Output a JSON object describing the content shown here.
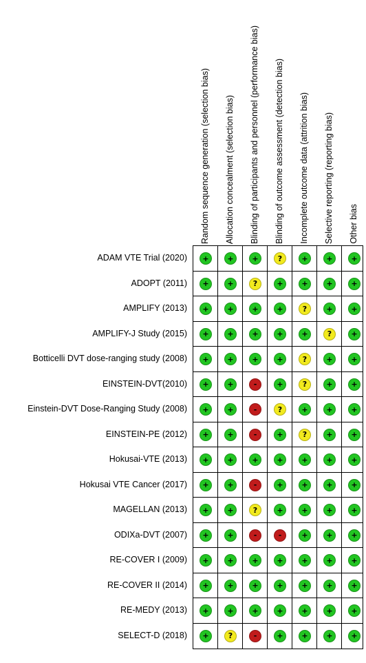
{
  "domains": [
    "Random sequence generation (selection bias)",
    "Allocation concealment (selection bias)",
    "Blinding of participants and personnel (performance bias)",
    "Blinding of outcome assessment (detection bias)",
    "Incomplete outcome data (attrition bias)",
    "Selective reporting (reporting bias)",
    "Other bias"
  ],
  "judgement_symbols": {
    "low": "+",
    "unclear": "?",
    "high": "-"
  },
  "judgement_colors": {
    "low": "#22c522",
    "unclear": "#f2ea1e",
    "high": "#c11c1c"
  },
  "studies": [
    {
      "name": "ADAM VTE Trial (2020)",
      "ratings": [
        "low",
        "low",
        "low",
        "unclear",
        "low",
        "low",
        "low"
      ]
    },
    {
      "name": "ADOPT (2011)",
      "ratings": [
        "low",
        "low",
        "unclear",
        "low",
        "low",
        "low",
        "low"
      ]
    },
    {
      "name": "AMPLIFY (2013)",
      "ratings": [
        "low",
        "low",
        "low",
        "low",
        "unclear",
        "low",
        "low"
      ]
    },
    {
      "name": "AMPLIFY-J Study (2015)",
      "ratings": [
        "low",
        "low",
        "low",
        "low",
        "low",
        "unclear",
        "low"
      ]
    },
    {
      "name": "Botticelli DVT dose-ranging study (2008)",
      "ratings": [
        "low",
        "low",
        "low",
        "low",
        "unclear",
        "low",
        "low"
      ]
    },
    {
      "name": "EINSTEIN-DVT(2010)",
      "ratings": [
        "low",
        "low",
        "high",
        "low",
        "unclear",
        "low",
        "low"
      ]
    },
    {
      "name": "Einstein-DVT Dose-Ranging Study (2008)",
      "ratings": [
        "low",
        "low",
        "high",
        "unclear",
        "low",
        "low",
        "low"
      ]
    },
    {
      "name": "EINSTEIN-PE (2012)",
      "ratings": [
        "low",
        "low",
        "high",
        "low",
        "unclear",
        "low",
        "low"
      ]
    },
    {
      "name": "Hokusai-VTE (2013)",
      "ratings": [
        "low",
        "low",
        "low",
        "low",
        "low",
        "low",
        "low"
      ]
    },
    {
      "name": "Hokusai VTE Cancer (2017)",
      "ratings": [
        "low",
        "low",
        "high",
        "low",
        "low",
        "low",
        "low"
      ]
    },
    {
      "name": "MAGELLAN (2013)",
      "ratings": [
        "low",
        "low",
        "unclear",
        "low",
        "low",
        "low",
        "low"
      ]
    },
    {
      "name": "ODIXa-DVT (2007)",
      "ratings": [
        "low",
        "low",
        "high",
        "high",
        "low",
        "low",
        "low"
      ]
    },
    {
      "name": "RE-COVER I (2009)",
      "ratings": [
        "low",
        "low",
        "low",
        "low",
        "low",
        "low",
        "low"
      ]
    },
    {
      "name": "RE-COVER II (2014)",
      "ratings": [
        "low",
        "low",
        "low",
        "low",
        "low",
        "low",
        "low"
      ]
    },
    {
      "name": "RE-MEDY (2013)",
      "ratings": [
        "low",
        "low",
        "low",
        "low",
        "low",
        "low",
        "low"
      ]
    },
    {
      "name": "SELECT-D (2018)",
      "ratings": [
        "low",
        "unclear",
        "high",
        "low",
        "low",
        "low",
        "low"
      ]
    }
  ]
}
